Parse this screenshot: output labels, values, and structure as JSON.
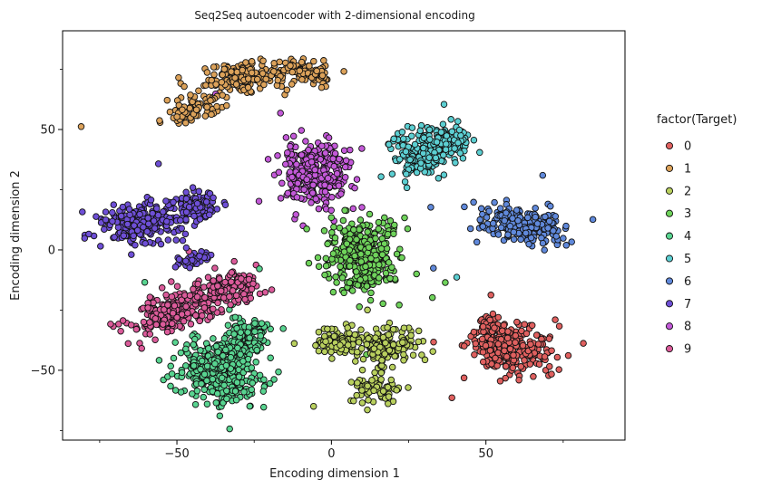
{
  "chart_data": {
    "type": "scatter",
    "title": "Seq2Seq autoencoder with 2-dimensional encoding",
    "xlabel": "Encoding dimension 1",
    "ylabel": "Encoding dimension 2",
    "xlim": [
      -87,
      95
    ],
    "ylim": [
      -79,
      91
    ],
    "xticks": [
      {
        "value": -50,
        "label": "−50"
      },
      {
        "value": 0,
        "label": "0"
      },
      {
        "value": 50,
        "label": "50"
      }
    ],
    "yticks": [
      {
        "value": -50,
        "label": "−50"
      },
      {
        "value": 0,
        "label": "0"
      },
      {
        "value": 50,
        "label": "50"
      }
    ],
    "minor_ticks": [
      -75,
      -25,
      25,
      75
    ],
    "grid": false,
    "legend": {
      "title": "factor(Target)",
      "placement": "right-outside"
    },
    "series": [
      {
        "name": "0",
        "color": "#e0605f",
        "clusters": [
          {
            "cx": 58,
            "cy": -41,
            "sx": 7.5,
            "sy": 6.5,
            "rot": -0.2
          },
          {
            "cx": 51,
            "cy": -33,
            "sx": 3,
            "sy": 3,
            "rot": 0
          }
        ]
      },
      {
        "name": "1",
        "color": "#dca25a",
        "clusters": [
          {
            "cx": -45,
            "cy": 58,
            "sx": 6,
            "sy": 2.5,
            "rot": 0.55
          },
          {
            "cx": -28,
            "cy": 72,
            "sx": 9,
            "sy": 3.5,
            "rot": 0.1
          },
          {
            "cx": -8,
            "cy": 74,
            "sx": 5,
            "sy": 2.8,
            "rot": -0.1
          }
        ]
      },
      {
        "name": "2",
        "color": "#b9d05e",
        "clusters": [
          {
            "cx": 2,
            "cy": -38,
            "sx": 5,
            "sy": 3.5,
            "rot": 0
          },
          {
            "cx": 18,
            "cy": -40,
            "sx": 6,
            "sy": 4.5,
            "rot": 0
          },
          {
            "cx": 14,
            "cy": -58,
            "sx": 3.8,
            "sy": 3.5,
            "rot": 0
          }
        ]
      },
      {
        "name": "3",
        "color": "#6fd35b",
        "clusters": [
          {
            "cx": 10,
            "cy": -2,
            "sx": 7,
            "sy": 9,
            "rot": 0
          }
        ]
      },
      {
        "name": "4",
        "color": "#58d490",
        "clusters": [
          {
            "cx": -36,
            "cy": -50,
            "sx": 8,
            "sy": 8,
            "rot": 0.2
          },
          {
            "cx": -28,
            "cy": -36,
            "sx": 4,
            "sy": 5,
            "rot": 0
          }
        ]
      },
      {
        "name": "5",
        "color": "#5ccfd2",
        "clusters": [
          {
            "cx": 30,
            "cy": 40,
            "sx": 6,
            "sy": 6,
            "rot": -0.5
          },
          {
            "cx": 38,
            "cy": 45,
            "sx": 4,
            "sy": 3.5,
            "rot": 0
          }
        ]
      },
      {
        "name": "6",
        "color": "#6089db",
        "clusters": [
          {
            "cx": 62,
            "cy": 10,
            "sx": 9,
            "sy": 4.2,
            "rot": -0.32
          }
        ]
      },
      {
        "name": "7",
        "color": "#6e4fd6",
        "clusters": [
          {
            "cx": -62,
            "cy": 12,
            "sx": 8.5,
            "sy": 4.5,
            "rot": 0.1
          },
          {
            "cx": -44,
            "cy": 18,
            "sx": 5,
            "sy": 3.2,
            "rot": 0
          },
          {
            "cx": -45,
            "cy": -4,
            "sx": 4,
            "sy": 2,
            "rot": 0.2
          }
        ]
      },
      {
        "name": "8",
        "color": "#c359d8",
        "clusters": [
          {
            "cx": -6,
            "cy": 32,
            "sx": 7,
            "sy": 8,
            "rot": 0.1
          }
        ]
      },
      {
        "name": "9",
        "color": "#db5b9a",
        "clusters": [
          {
            "cx": -50,
            "cy": -25,
            "sx": 9,
            "sy": 5,
            "rot": 0.45
          },
          {
            "cx": -32,
            "cy": -16,
            "sx": 5.5,
            "sy": 4,
            "rot": 0.3
          }
        ]
      }
    ]
  }
}
